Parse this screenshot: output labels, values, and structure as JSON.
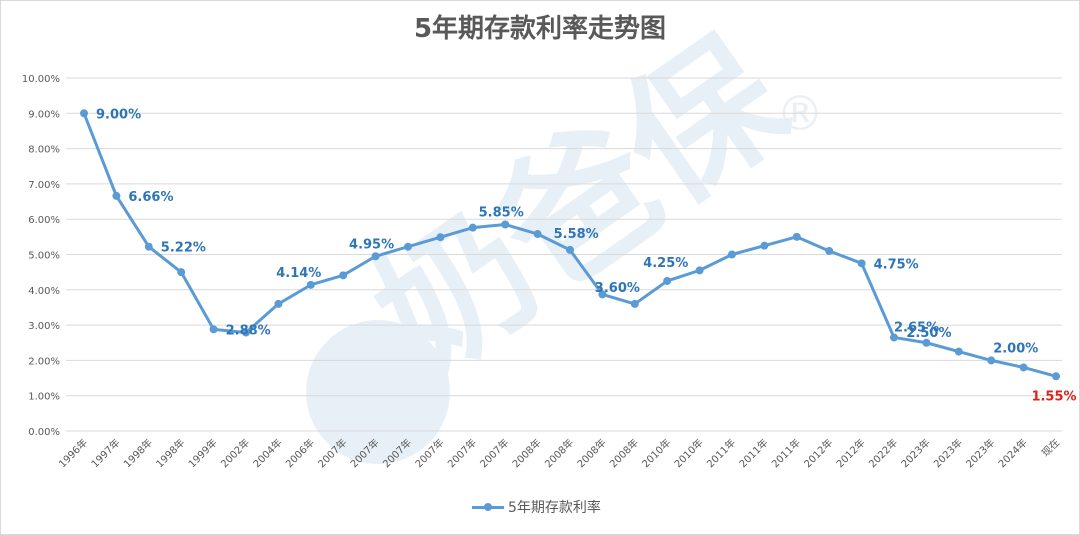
{
  "chart_data": {
    "type": "line",
    "title": "5年期存款利率走势图",
    "x": [
      "1996年",
      "1997年",
      "1998年",
      "1998年",
      "1999年",
      "2002年",
      "2004年",
      "2006年",
      "2007年",
      "2007年",
      "2007年",
      "2007年",
      "2007年",
      "2007年",
      "2008年",
      "2008年",
      "2008年",
      "2008年",
      "2010年",
      "2010年",
      "2011年",
      "2011年",
      "2011年",
      "2012年",
      "2012年",
      "2022年",
      "2023年",
      "2023年",
      "2023年",
      "2024年",
      "现在"
    ],
    "series": [
      {
        "name": "5年期存款利率",
        "values": [
          9.0,
          6.66,
          5.22,
          4.5,
          2.88,
          2.79,
          3.6,
          4.14,
          4.41,
          4.95,
          5.22,
          5.49,
          5.76,
          5.85,
          5.58,
          5.13,
          3.87,
          3.6,
          4.25,
          4.55,
          5.0,
          5.25,
          5.5,
          5.1,
          4.75,
          2.65,
          2.5,
          2.25,
          2.0,
          1.8,
          1.55
        ]
      }
    ],
    "data_labels": [
      {
        "index": 0,
        "text": "9.00%"
      },
      {
        "index": 1,
        "text": "6.66%"
      },
      {
        "index": 2,
        "text": "5.22%"
      },
      {
        "index": 4,
        "text": "2.88%"
      },
      {
        "index": 7,
        "text": "4.14%"
      },
      {
        "index": 9,
        "text": "4.95%"
      },
      {
        "index": 13,
        "text": "5.85%"
      },
      {
        "index": 14,
        "text": "5.58%"
      },
      {
        "index": 17,
        "text": "3.60%"
      },
      {
        "index": 18,
        "text": "4.25%"
      },
      {
        "index": 24,
        "text": "4.75%"
      },
      {
        "index": 25,
        "text": "2.65%"
      },
      {
        "index": 26,
        "text": "2.50%"
      },
      {
        "index": 28,
        "text": "2.00%"
      },
      {
        "index": 30,
        "text": "1.55%",
        "highlight": true
      }
    ],
    "ylim": [
      0,
      10
    ],
    "yticks": [
      "0.00%",
      "1.00%",
      "2.00%",
      "3.00%",
      "4.00%",
      "5.00%",
      "6.00%",
      "7.00%",
      "8.00%",
      "9.00%",
      "10.00%"
    ],
    "grid": true,
    "legend_position": "bottom",
    "colors": {
      "line": "#5b9bd5",
      "label": "#2e75b6",
      "highlight": "#e0201b",
      "grid": "#d9d9d9",
      "axis_text": "#595959"
    }
  },
  "watermark": {
    "text": "奶爸保",
    "symbol": "®"
  }
}
